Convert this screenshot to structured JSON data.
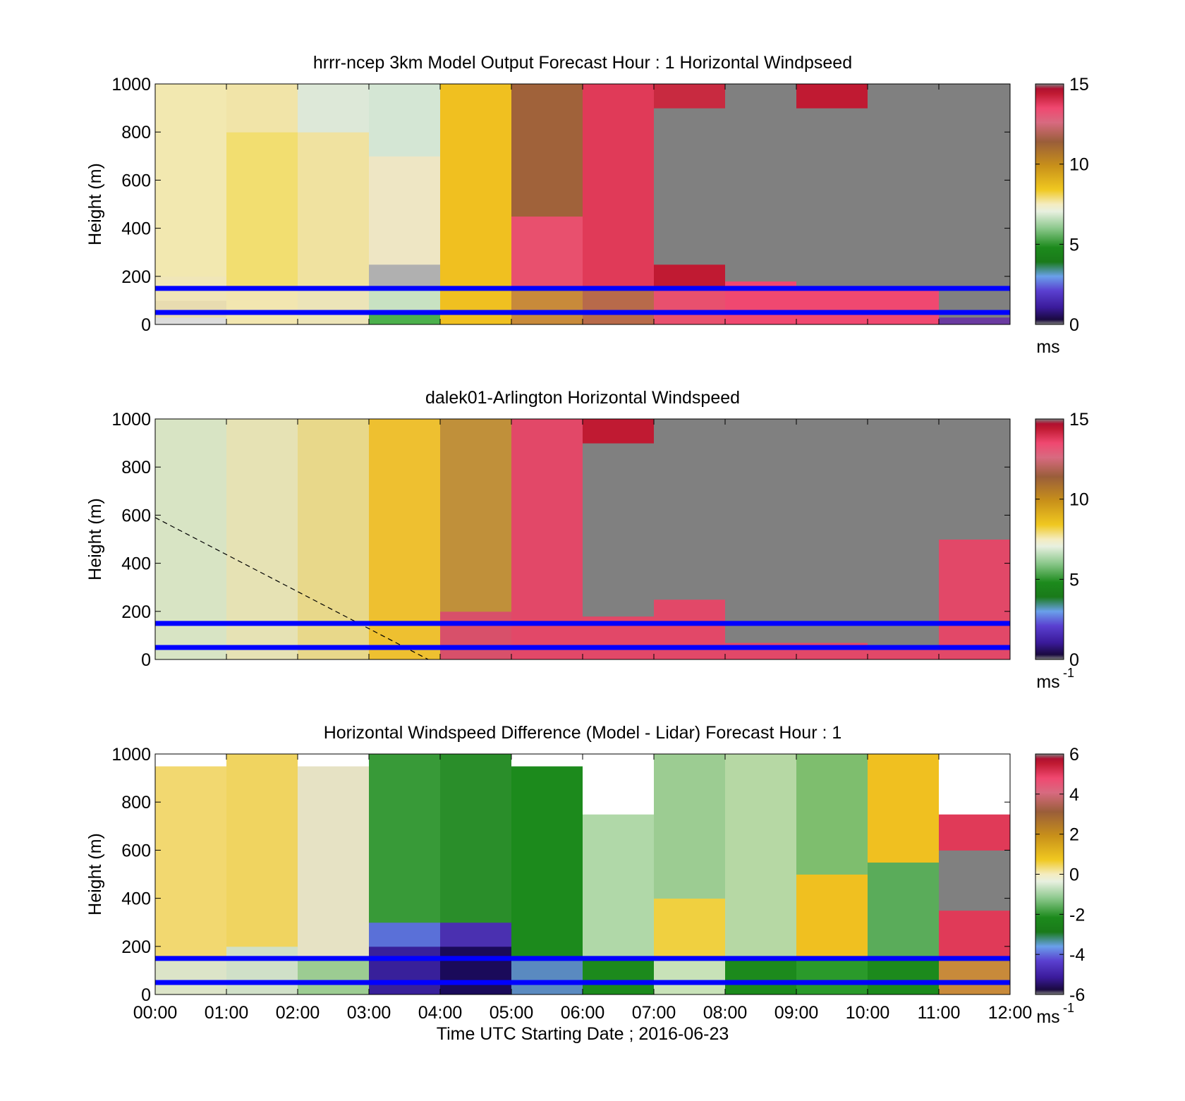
{
  "figure": {
    "xaxis": {
      "ticks": [
        "00:00",
        "01:00",
        "02:00",
        "03:00",
        "04:00",
        "05:00",
        "06:00",
        "07:00",
        "08:00",
        "09:00",
        "10:00",
        "11:00",
        "12:00"
      ],
      "label": "Time UTC  Starting Date ; 2016-06-23"
    }
  },
  "chart_data": [
    {
      "type": "heatmap",
      "title": "hrrr-ncep 3km Model Output   Forecast Hour : 1 Horizontal Windpseed",
      "ylabel": "Height (m)",
      "ylim": [
        0,
        1000
      ],
      "yticks": [
        "0",
        "200",
        "400",
        "600",
        "800",
        "1000"
      ],
      "xlim": [
        "00:00",
        "12:00"
      ],
      "colorbar": {
        "ticks": [
          "0",
          "5",
          "10",
          "15"
        ],
        "range": [
          0,
          15
        ],
        "unit": "ms"
      },
      "reference_lines_m": [
        50,
        150
      ],
      "hourly_columns": [
        {
          "time": "00:00",
          "profile": [
            {
              "from": 0,
              "to": 30,
              "color": "#dcdcdc"
            },
            {
              "from": 30,
              "to": 100,
              "color": "#e8dcb0"
            },
            {
              "from": 100,
              "to": 200,
              "color": "#f0e6b8"
            },
            {
              "from": 200,
              "to": 1000,
              "color": "#f2e8b0"
            }
          ]
        },
        {
          "time": "01:00",
          "profile": [
            {
              "from": 0,
              "to": 150,
              "color": "#f2e6b0"
            },
            {
              "from": 150,
              "to": 800,
              "color": "#f2de70"
            },
            {
              "from": 800,
              "to": 1000,
              "color": "#f1e4a8"
            }
          ]
        },
        {
          "time": "02:00",
          "profile": [
            {
              "from": 0,
              "to": 150,
              "color": "#ece4b8"
            },
            {
              "from": 150,
              "to": 800,
              "color": "#f0e2a0"
            },
            {
              "from": 800,
              "to": 1000,
              "color": "#dde8d8"
            }
          ]
        },
        {
          "time": "03:00",
          "profile": [
            {
              "from": 0,
              "to": 60,
              "color": "#4cb04c"
            },
            {
              "from": 60,
              "to": 150,
              "color": "#c8e2c2"
            },
            {
              "from": 150,
              "to": 250,
              "color": "#b0b0b0"
            },
            {
              "from": 250,
              "to": 700,
              "color": "#eee6c4"
            },
            {
              "from": 700,
              "to": 1000,
              "color": "#d4e6d4"
            }
          ]
        },
        {
          "time": "04:00",
          "profile": [
            {
              "from": 0,
              "to": 1000,
              "color": "#f0c020"
            }
          ]
        },
        {
          "time": "05:00",
          "profile": [
            {
              "from": 0,
              "to": 150,
              "color": "#c88a3a"
            },
            {
              "from": 150,
              "to": 450,
              "color": "#e8506e"
            },
            {
              "from": 450,
              "to": 1000,
              "color": "#a0623a"
            }
          ]
        },
        {
          "time": "06:00",
          "profile": [
            {
              "from": 0,
              "to": 150,
              "color": "#b86a4a"
            },
            {
              "from": 150,
              "to": 1000,
              "color": "#e03a58"
            }
          ]
        },
        {
          "time": "07:00",
          "profile": [
            {
              "from": 0,
              "to": 150,
              "color": "#e8506e"
            },
            {
              "from": 150,
              "to": 250,
              "color": "#c01a32"
            },
            {
              "from": 250,
              "to": 900,
              "color": "#808080"
            },
            {
              "from": 900,
              "to": 1000,
              "color": "#c82a40"
            }
          ]
        },
        {
          "time": "08:00",
          "profile": [
            {
              "from": 0,
              "to": 180,
              "color": "#f04870"
            },
            {
              "from": 180,
              "to": 1000,
              "color": "#808080"
            }
          ]
        },
        {
          "time": "09:00",
          "profile": [
            {
              "from": 0,
              "to": 150,
              "color": "#f04870"
            },
            {
              "from": 150,
              "to": 900,
              "color": "#808080"
            },
            {
              "from": 900,
              "to": 1000,
              "color": "#c01a32"
            }
          ]
        },
        {
          "time": "10:00",
          "profile": [
            {
              "from": 0,
              "to": 150,
              "color": "#f04870"
            },
            {
              "from": 150,
              "to": 1000,
              "color": "#808080"
            }
          ]
        },
        {
          "time": "11:00",
          "profile": [
            {
              "from": 0,
              "to": 30,
              "color": "#6a3aa0"
            },
            {
              "from": 30,
              "to": 1000,
              "color": "#808080"
            }
          ]
        }
      ]
    },
    {
      "type": "heatmap",
      "title": "dalek01-Arlington  Horizontal Windspeed",
      "ylabel": "Height (m)",
      "ylim": [
        0,
        1000
      ],
      "yticks": [
        "0",
        "200",
        "400",
        "600",
        "800",
        "1000"
      ],
      "xlim": [
        "00:00",
        "12:00"
      ],
      "colorbar": {
        "ticks": [
          "0",
          "5",
          "10",
          "15"
        ],
        "range": [
          0,
          15
        ],
        "unit": "ms",
        "unit_exponent": "-1"
      },
      "reference_lines_m": [
        50,
        150
      ],
      "dashed_line": [
        {
          "time": "00:00",
          "height_m": 590
        },
        {
          "time": "03:50",
          "height_m": 0
        }
      ],
      "hourly_columns": [
        {
          "time": "00:00",
          "profile": [
            {
              "from": 0,
              "to": 1000,
              "color": "#d8e4c4"
            }
          ]
        },
        {
          "time": "01:00",
          "profile": [
            {
              "from": 0,
              "to": 1000,
              "color": "#e6e2b4"
            }
          ]
        },
        {
          "time": "02:00",
          "profile": [
            {
              "from": 0,
              "to": 1000,
              "color": "#e8d88a"
            }
          ]
        },
        {
          "time": "03:00",
          "profile": [
            {
              "from": 0,
              "to": 1000,
              "color": "#eec030"
            }
          ]
        },
        {
          "time": "04:00",
          "profile": [
            {
              "from": 0,
              "to": 200,
              "color": "#d8506a"
            },
            {
              "from": 200,
              "to": 1000,
              "color": "#c0903a"
            }
          ]
        },
        {
          "time": "05:00",
          "profile": [
            {
              "from": 0,
              "to": 1000,
              "color": "#e24868"
            }
          ]
        },
        {
          "time": "06:00",
          "profile": [
            {
              "from": 0,
              "to": 180,
              "color": "#e24868"
            },
            {
              "from": 180,
              "to": 900,
              "color": "#808080"
            },
            {
              "from": 900,
              "to": 1000,
              "color": "#c01a32"
            }
          ]
        },
        {
          "time": "07:00",
          "profile": [
            {
              "from": 0,
              "to": 250,
              "color": "#e24868"
            },
            {
              "from": 250,
              "to": 1000,
              "color": "#808080"
            }
          ]
        },
        {
          "time": "08:00",
          "profile": [
            {
              "from": 0,
              "to": 70,
              "color": "#e24868"
            },
            {
              "from": 70,
              "to": 1000,
              "color": "#808080"
            }
          ]
        },
        {
          "time": "09:00",
          "profile": [
            {
              "from": 0,
              "to": 70,
              "color": "#e24868"
            },
            {
              "from": 70,
              "to": 1000,
              "color": "#808080"
            }
          ]
        },
        {
          "time": "10:00",
          "profile": [
            {
              "from": 0,
              "to": 50,
              "color": "#e24868"
            },
            {
              "from": 50,
              "to": 1000,
              "color": "#808080"
            }
          ]
        },
        {
          "time": "11:00",
          "profile": [
            {
              "from": 0,
              "to": 500,
              "color": "#e24868"
            },
            {
              "from": 500,
              "to": 1000,
              "color": "#808080"
            }
          ]
        }
      ]
    },
    {
      "type": "heatmap",
      "title": "Horizontal Windspeed Difference (Model - Lidar) Forecast Hour : 1",
      "ylabel": "Height (m)",
      "ylim": [
        0,
        1000
      ],
      "yticks": [
        "0",
        "200",
        "400",
        "600",
        "800",
        "1000"
      ],
      "xlim": [
        "00:00",
        "12:00"
      ],
      "colorbar": {
        "ticks": [
          "-6",
          "-4",
          "-2",
          "0",
          "2",
          "4",
          "6"
        ],
        "range": [
          -6,
          6
        ],
        "unit": "ms",
        "unit_exponent": "-1"
      },
      "reference_lines_m": [
        50,
        150
      ],
      "hourly_columns": [
        {
          "time": "00:00",
          "profile": [
            {
              "from": 0,
              "to": 150,
              "color": "#dce4c8"
            },
            {
              "from": 150,
              "to": 950,
              "color": "#f2d870"
            },
            {
              "from": 950,
              "to": 1000,
              "color": "#ffffff"
            }
          ]
        },
        {
          "time": "01:00",
          "profile": [
            {
              "from": 0,
              "to": 200,
              "color": "#d0e0c8"
            },
            {
              "from": 200,
              "to": 1000,
              "color": "#f0d460"
            }
          ]
        },
        {
          "time": "02:00",
          "profile": [
            {
              "from": 0,
              "to": 150,
              "color": "#9ccc92"
            },
            {
              "from": 150,
              "to": 950,
              "color": "#e6e2c4"
            },
            {
              "from": 950,
              "to": 1000,
              "color": "#ffffff"
            }
          ]
        },
        {
          "time": "03:00",
          "profile": [
            {
              "from": 0,
              "to": 200,
              "color": "#38209a"
            },
            {
              "from": 200,
              "to": 300,
              "color": "#5a70d8"
            },
            {
              "from": 300,
              "to": 1000,
              "color": "#389a38"
            }
          ]
        },
        {
          "time": "04:00",
          "profile": [
            {
              "from": 0,
              "to": 200,
              "color": "#1a0a5a"
            },
            {
              "from": 200,
              "to": 300,
              "color": "#4a30b0"
            },
            {
              "from": 300,
              "to": 1000,
              "color": "#2a8e2a"
            }
          ]
        },
        {
          "time": "05:00",
          "profile": [
            {
              "from": 0,
              "to": 150,
              "color": "#5a8ac0"
            },
            {
              "from": 150,
              "to": 950,
              "color": "#1c8a1c"
            },
            {
              "from": 950,
              "to": 1000,
              "color": "#ffffff"
            }
          ]
        },
        {
          "time": "06:00",
          "profile": [
            {
              "from": 0,
              "to": 150,
              "color": "#1c8a1c"
            },
            {
              "from": 150,
              "to": 750,
              "color": "#b0d8a8"
            },
            {
              "from": 750,
              "to": 1000,
              "color": "#ffffff"
            }
          ]
        },
        {
          "time": "07:00",
          "profile": [
            {
              "from": 0,
              "to": 150,
              "color": "#c8e2b8"
            },
            {
              "from": 150,
              "to": 400,
              "color": "#f0d040"
            },
            {
              "from": 400,
              "to": 1000,
              "color": "#9ccc92"
            }
          ]
        },
        {
          "time": "08:00",
          "profile": [
            {
              "from": 0,
              "to": 150,
              "color": "#1c8a1c"
            },
            {
              "from": 150,
              "to": 1000,
              "color": "#b6d8a4"
            }
          ]
        },
        {
          "time": "09:00",
          "profile": [
            {
              "from": 0,
              "to": 150,
              "color": "#2a9a2a"
            },
            {
              "from": 150,
              "to": 500,
              "color": "#f0c020"
            },
            {
              "from": 500,
              "to": 1000,
              "color": "#7ebe6e"
            }
          ]
        },
        {
          "time": "10:00",
          "profile": [
            {
              "from": 0,
              "to": 150,
              "color": "#1c8a1c"
            },
            {
              "from": 150,
              "to": 550,
              "color": "#5aac5a"
            },
            {
              "from": 550,
              "to": 1000,
              "color": "#f0c020"
            }
          ]
        },
        {
          "time": "11:00",
          "profile": [
            {
              "from": 0,
              "to": 150,
              "color": "#c88a3a"
            },
            {
              "from": 150,
              "to": 350,
              "color": "#e03a58"
            },
            {
              "from": 350,
              "to": 600,
              "color": "#808080"
            },
            {
              "from": 600,
              "to": 750,
              "color": "#e03a58"
            },
            {
              "from": 750,
              "to": 1000,
              "color": "#ffffff"
            }
          ]
        }
      ]
    }
  ]
}
